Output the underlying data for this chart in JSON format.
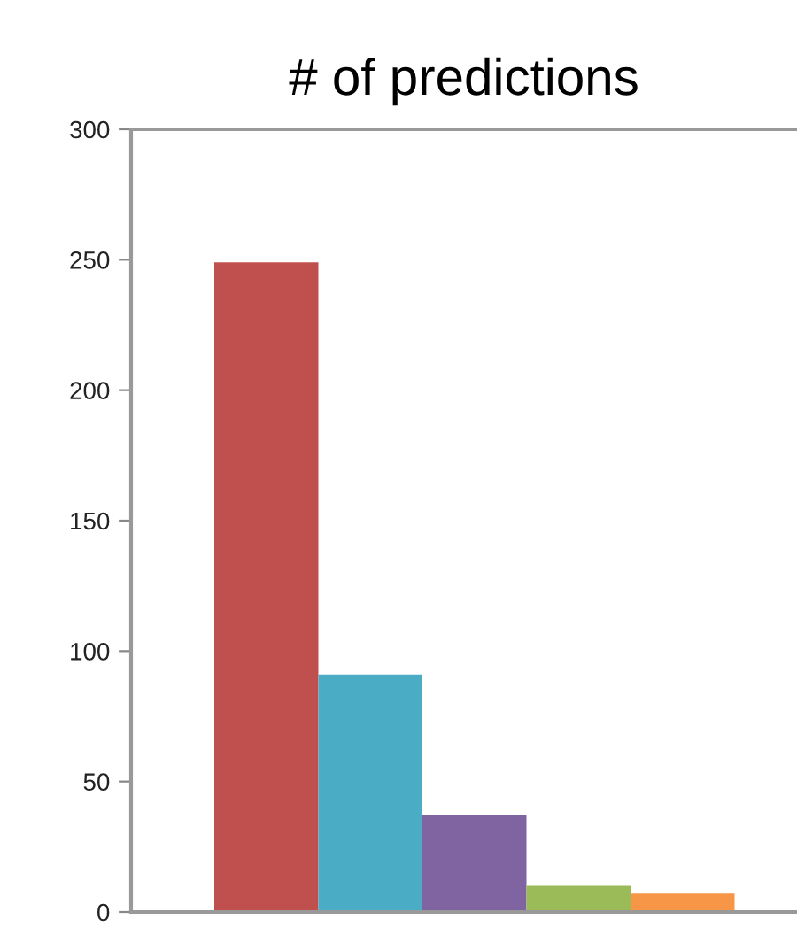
{
  "chart_data": {
    "type": "bar",
    "title": "# of predictions",
    "categories": [
      null,
      null,
      null,
      null,
      null
    ],
    "values": [
      249,
      91,
      37,
      10,
      7
    ],
    "colors": [
      "#c0504d",
      "#4bacc6",
      "#8064a2",
      "#9bbb59",
      "#f79646"
    ],
    "ylim": [
      0,
      300
    ],
    "yticks": [
      0,
      50,
      100,
      150,
      200,
      250,
      300
    ],
    "grid": false,
    "legend": false
  }
}
